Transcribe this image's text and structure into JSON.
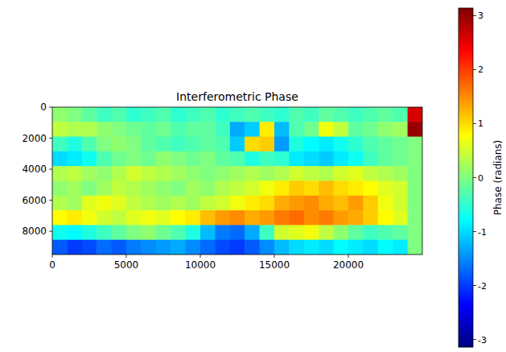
{
  "chart_data": {
    "type": "heatmap",
    "title": "Interferometric Phase",
    "color": "jet",
    "xlim": [
      0,
      25000
    ],
    "ylim": [
      9500,
      0
    ],
    "xticks": [
      0,
      5000,
      10000,
      15000,
      20000
    ],
    "yticks": [
      0,
      2000,
      4000,
      6000,
      8000
    ],
    "cells": [
      [
        0.1,
        0.0,
        -0.2,
        -0.4,
        -0.3,
        -0.5,
        -0.4,
        -0.3,
        -0.5,
        -0.4,
        -0.3,
        -0.5,
        -0.4,
        -0.3,
        -0.4,
        -0.5,
        -0.3,
        -0.4,
        -0.2,
        -0.3,
        -0.4,
        -0.3,
        -0.2,
        -0.3,
        2.6
      ],
      [
        0.4,
        0.3,
        0.3,
        0.1,
        0.0,
        -0.1,
        -0.2,
        -0.1,
        -0.3,
        -0.2,
        -0.2,
        -0.4,
        -1.3,
        -1.1,
        0.9,
        -1.2,
        -0.3,
        -0.1,
        0.7,
        0.4,
        -0.2,
        -0.1,
        0.1,
        0.2,
        3.0
      ],
      [
        -0.4,
        -0.6,
        -0.3,
        0.0,
        0.1,
        0.0,
        -0.2,
        -0.3,
        -0.4,
        -0.3,
        -0.2,
        -0.3,
        -1.1,
        1.0,
        1.1,
        -1.4,
        -0.6,
        -0.8,
        -0.9,
        -0.7,
        -0.5,
        -0.3,
        -0.2,
        -0.1,
        0.0
      ],
      [
        -1.0,
        -0.9,
        -0.7,
        -0.3,
        -0.1,
        0.0,
        -0.1,
        0.1,
        0.0,
        -0.1,
        0.0,
        -0.2,
        -0.3,
        -0.6,
        -0.4,
        -0.5,
        -0.9,
        -1.0,
        -1.1,
        -0.9,
        -0.7,
        -0.4,
        -0.2,
        -0.1,
        0.0
      ],
      [
        0.3,
        0.4,
        0.2,
        0.1,
        0.3,
        0.5,
        0.4,
        0.3,
        0.2,
        0.1,
        0.0,
        0.1,
        0.2,
        0.3,
        0.2,
        0.3,
        0.5,
        0.4,
        0.3,
        0.5,
        0.6,
        0.4,
        0.3,
        0.2,
        0.0
      ],
      [
        0.1,
        0.2,
        0.0,
        0.2,
        0.4,
        0.3,
        0.2,
        0.1,
        0.0,
        0.2,
        0.1,
        0.3,
        0.4,
        0.5,
        0.7,
        0.9,
        1.1,
        1.0,
        1.2,
        1.0,
        0.9,
        0.8,
        0.6,
        0.5,
        0.0
      ],
      [
        0.3,
        0.2,
        0.6,
        0.7,
        0.6,
        0.4,
        0.3,
        0.2,
        0.3,
        0.2,
        0.4,
        0.5,
        0.7,
        0.9,
        1.0,
        1.3,
        1.4,
        1.5,
        1.3,
        1.2,
        1.4,
        1.1,
        0.7,
        0.5,
        0.0
      ],
      [
        0.8,
        0.9,
        0.7,
        0.5,
        0.4,
        0.6,
        0.7,
        0.6,
        0.8,
        0.9,
        1.2,
        1.4,
        1.5,
        1.3,
        1.4,
        1.6,
        1.7,
        1.5,
        1.6,
        1.4,
        1.3,
        1.1,
        0.8,
        0.6,
        0.0
      ],
      [
        -0.7,
        -0.8,
        -0.6,
        -0.4,
        -0.2,
        0.0,
        0.1,
        -0.1,
        -0.3,
        -0.6,
        -1.2,
        -1.6,
        -1.7,
        -1.3,
        -0.4,
        0.5,
        0.6,
        0.7,
        0.4,
        0.1,
        -0.2,
        -0.4,
        -0.3,
        -0.2,
        0.0
      ],
      [
        -1.8,
        -2.0,
        -1.9,
        -1.7,
        -1.8,
        -1.6,
        -1.5,
        -1.4,
        -1.3,
        -1.5,
        -1.7,
        -1.9,
        -2.0,
        -1.8,
        -1.5,
        -1.2,
        -1.0,
        -0.9,
        -1.0,
        -0.8,
        -0.9,
        -1.0,
        -0.8,
        -0.9,
        0.0
      ]
    ],
    "colorbar": {
      "label": "Phase (radians)",
      "range": [
        -3.14159,
        3.14159
      ],
      "ticks": [
        -3,
        -2,
        -1,
        0,
        1,
        2,
        3
      ]
    }
  }
}
